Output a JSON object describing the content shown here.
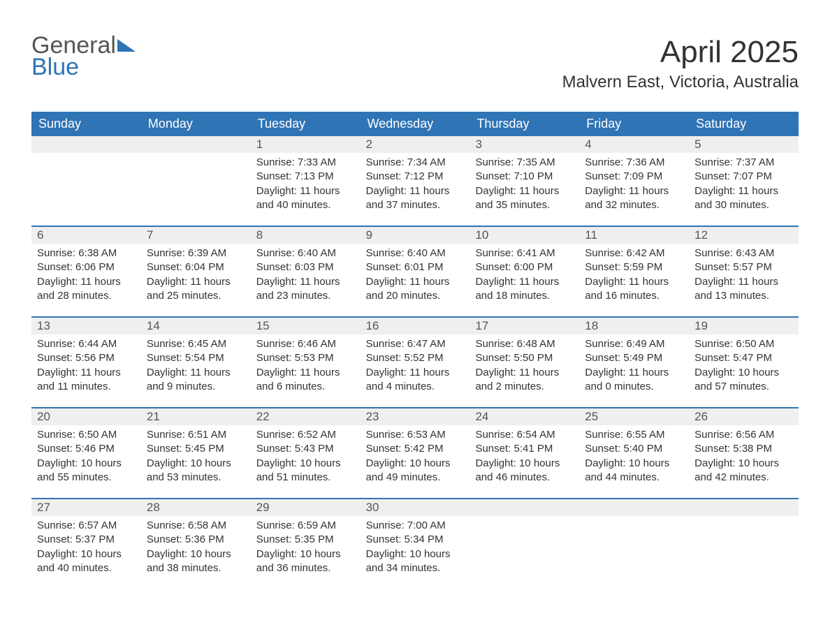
{
  "logo": {
    "text1": "General",
    "text2": "Blue",
    "sail_color": "#2f74b5"
  },
  "title": "April 2025",
  "subtitle": "Malvern East, Victoria, Australia",
  "colors": {
    "header_bg": "#2f74b5",
    "header_text": "#ffffff",
    "strip_bg": "#efefef",
    "week_divider": "#2f74b5",
    "body_text": "#333333",
    "daynum_text": "#555555"
  },
  "typography": {
    "title_fontsize": 44,
    "subtitle_fontsize": 24,
    "weekday_fontsize": 18,
    "daynum_fontsize": 17,
    "body_fontsize": 15
  },
  "weekdays": [
    "Sunday",
    "Monday",
    "Tuesday",
    "Wednesday",
    "Thursday",
    "Friday",
    "Saturday"
  ],
  "weeks": [
    [
      {
        "day": "",
        "sunrise": "",
        "sunset": "",
        "daylight": "",
        "empty": true
      },
      {
        "day": "",
        "sunrise": "",
        "sunset": "",
        "daylight": "",
        "empty": true
      },
      {
        "day": "1",
        "sunrise": "Sunrise: 7:33 AM",
        "sunset": "Sunset: 7:13 PM",
        "daylight": "Daylight: 11 hours and 40 minutes."
      },
      {
        "day": "2",
        "sunrise": "Sunrise: 7:34 AM",
        "sunset": "Sunset: 7:12 PM",
        "daylight": "Daylight: 11 hours and 37 minutes."
      },
      {
        "day": "3",
        "sunrise": "Sunrise: 7:35 AM",
        "sunset": "Sunset: 7:10 PM",
        "daylight": "Daylight: 11 hours and 35 minutes."
      },
      {
        "day": "4",
        "sunrise": "Sunrise: 7:36 AM",
        "sunset": "Sunset: 7:09 PM",
        "daylight": "Daylight: 11 hours and 32 minutes."
      },
      {
        "day": "5",
        "sunrise": "Sunrise: 7:37 AM",
        "sunset": "Sunset: 7:07 PM",
        "daylight": "Daylight: 11 hours and 30 minutes."
      }
    ],
    [
      {
        "day": "6",
        "sunrise": "Sunrise: 6:38 AM",
        "sunset": "Sunset: 6:06 PM",
        "daylight": "Daylight: 11 hours and 28 minutes."
      },
      {
        "day": "7",
        "sunrise": "Sunrise: 6:39 AM",
        "sunset": "Sunset: 6:04 PM",
        "daylight": "Daylight: 11 hours and 25 minutes."
      },
      {
        "day": "8",
        "sunrise": "Sunrise: 6:40 AM",
        "sunset": "Sunset: 6:03 PM",
        "daylight": "Daylight: 11 hours and 23 minutes."
      },
      {
        "day": "9",
        "sunrise": "Sunrise: 6:40 AM",
        "sunset": "Sunset: 6:01 PM",
        "daylight": "Daylight: 11 hours and 20 minutes."
      },
      {
        "day": "10",
        "sunrise": "Sunrise: 6:41 AM",
        "sunset": "Sunset: 6:00 PM",
        "daylight": "Daylight: 11 hours and 18 minutes."
      },
      {
        "day": "11",
        "sunrise": "Sunrise: 6:42 AM",
        "sunset": "Sunset: 5:59 PM",
        "daylight": "Daylight: 11 hours and 16 minutes."
      },
      {
        "day": "12",
        "sunrise": "Sunrise: 6:43 AM",
        "sunset": "Sunset: 5:57 PM",
        "daylight": "Daylight: 11 hours and 13 minutes."
      }
    ],
    [
      {
        "day": "13",
        "sunrise": "Sunrise: 6:44 AM",
        "sunset": "Sunset: 5:56 PM",
        "daylight": "Daylight: 11 hours and 11 minutes."
      },
      {
        "day": "14",
        "sunrise": "Sunrise: 6:45 AM",
        "sunset": "Sunset: 5:54 PM",
        "daylight": "Daylight: 11 hours and 9 minutes."
      },
      {
        "day": "15",
        "sunrise": "Sunrise: 6:46 AM",
        "sunset": "Sunset: 5:53 PM",
        "daylight": "Daylight: 11 hours and 6 minutes."
      },
      {
        "day": "16",
        "sunrise": "Sunrise: 6:47 AM",
        "sunset": "Sunset: 5:52 PM",
        "daylight": "Daylight: 11 hours and 4 minutes."
      },
      {
        "day": "17",
        "sunrise": "Sunrise: 6:48 AM",
        "sunset": "Sunset: 5:50 PM",
        "daylight": "Daylight: 11 hours and 2 minutes."
      },
      {
        "day": "18",
        "sunrise": "Sunrise: 6:49 AM",
        "sunset": "Sunset: 5:49 PM",
        "daylight": "Daylight: 11 hours and 0 minutes."
      },
      {
        "day": "19",
        "sunrise": "Sunrise: 6:50 AM",
        "sunset": "Sunset: 5:47 PM",
        "daylight": "Daylight: 10 hours and 57 minutes."
      }
    ],
    [
      {
        "day": "20",
        "sunrise": "Sunrise: 6:50 AM",
        "sunset": "Sunset: 5:46 PM",
        "daylight": "Daylight: 10 hours and 55 minutes."
      },
      {
        "day": "21",
        "sunrise": "Sunrise: 6:51 AM",
        "sunset": "Sunset: 5:45 PM",
        "daylight": "Daylight: 10 hours and 53 minutes."
      },
      {
        "day": "22",
        "sunrise": "Sunrise: 6:52 AM",
        "sunset": "Sunset: 5:43 PM",
        "daylight": "Daylight: 10 hours and 51 minutes."
      },
      {
        "day": "23",
        "sunrise": "Sunrise: 6:53 AM",
        "sunset": "Sunset: 5:42 PM",
        "daylight": "Daylight: 10 hours and 49 minutes."
      },
      {
        "day": "24",
        "sunrise": "Sunrise: 6:54 AM",
        "sunset": "Sunset: 5:41 PM",
        "daylight": "Daylight: 10 hours and 46 minutes."
      },
      {
        "day": "25",
        "sunrise": "Sunrise: 6:55 AM",
        "sunset": "Sunset: 5:40 PM",
        "daylight": "Daylight: 10 hours and 44 minutes."
      },
      {
        "day": "26",
        "sunrise": "Sunrise: 6:56 AM",
        "sunset": "Sunset: 5:38 PM",
        "daylight": "Daylight: 10 hours and 42 minutes."
      }
    ],
    [
      {
        "day": "27",
        "sunrise": "Sunrise: 6:57 AM",
        "sunset": "Sunset: 5:37 PM",
        "daylight": "Daylight: 10 hours and 40 minutes."
      },
      {
        "day": "28",
        "sunrise": "Sunrise: 6:58 AM",
        "sunset": "Sunset: 5:36 PM",
        "daylight": "Daylight: 10 hours and 38 minutes."
      },
      {
        "day": "29",
        "sunrise": "Sunrise: 6:59 AM",
        "sunset": "Sunset: 5:35 PM",
        "daylight": "Daylight: 10 hours and 36 minutes."
      },
      {
        "day": "30",
        "sunrise": "Sunrise: 7:00 AM",
        "sunset": "Sunset: 5:34 PM",
        "daylight": "Daylight: 10 hours and 34 minutes."
      },
      {
        "day": "",
        "sunrise": "",
        "sunset": "",
        "daylight": "",
        "empty": true
      },
      {
        "day": "",
        "sunrise": "",
        "sunset": "",
        "daylight": "",
        "empty": true
      },
      {
        "day": "",
        "sunrise": "",
        "sunset": "",
        "daylight": "",
        "empty": true
      }
    ]
  ]
}
